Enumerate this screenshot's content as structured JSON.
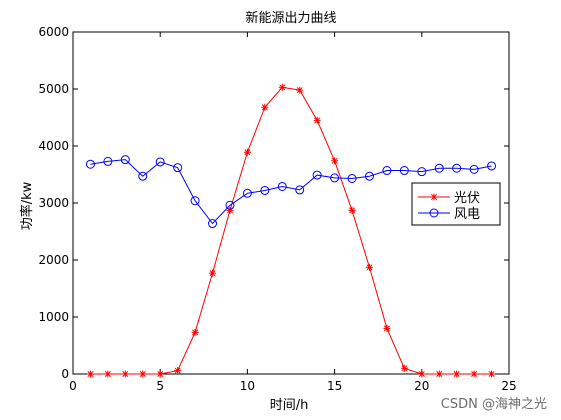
{
  "chart_data": {
    "type": "line",
    "title": "新能源出力曲线",
    "xlabel": "时间/h",
    "ylabel": "功率/kw",
    "xlim": [
      0,
      25
    ],
    "ylim": [
      0,
      6000
    ],
    "xticks": [
      0,
      5,
      10,
      15,
      20,
      25
    ],
    "yticks": [
      0,
      1000,
      2000,
      3000,
      4000,
      5000,
      6000
    ],
    "grid": false,
    "legend_position": "right",
    "x": [
      1,
      2,
      3,
      4,
      5,
      6,
      7,
      8,
      9,
      10,
      11,
      12,
      13,
      14,
      15,
      16,
      17,
      18,
      19,
      20,
      21,
      22,
      23,
      24
    ],
    "series": [
      {
        "name": "光伏",
        "color": "#ff0000",
        "marker": "asterisk",
        "values": [
          0,
          0,
          0,
          0,
          0,
          60,
          730,
          1770,
          2870,
          3890,
          4680,
          5030,
          4980,
          4450,
          3740,
          2870,
          1870,
          800,
          100,
          0,
          0,
          0,
          0,
          0
        ]
      },
      {
        "name": "风电",
        "color": "#0000ff",
        "marker": "circle",
        "values": [
          3680,
          3730,
          3760,
          3470,
          3720,
          3620,
          3040,
          2640,
          2960,
          3170,
          3220,
          3290,
          3230,
          3490,
          3440,
          3430,
          3470,
          3570,
          3570,
          3550,
          3610,
          3610,
          3590,
          3650
        ]
      }
    ]
  },
  "watermark": "CSDN @海神之光"
}
